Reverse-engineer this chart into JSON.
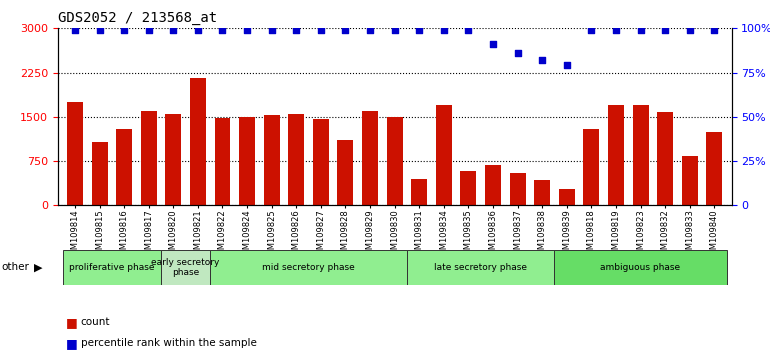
{
  "title": "GDS2052 / 213568_at",
  "samples": [
    "GSM109814",
    "GSM109815",
    "GSM109816",
    "GSM109817",
    "GSM109820",
    "GSM109821",
    "GSM109822",
    "GSM109824",
    "GSM109825",
    "GSM109826",
    "GSM109827",
    "GSM109828",
    "GSM109829",
    "GSM109830",
    "GSM109831",
    "GSM109834",
    "GSM109835",
    "GSM109836",
    "GSM109837",
    "GSM109838",
    "GSM109839",
    "GSM109818",
    "GSM109819",
    "GSM109823",
    "GSM109832",
    "GSM109833",
    "GSM109840"
  ],
  "counts": [
    1750,
    1080,
    1300,
    1600,
    1550,
    2150,
    1480,
    1500,
    1530,
    1550,
    1470,
    1100,
    1600,
    1500,
    450,
    1700,
    580,
    680,
    540,
    430,
    270,
    1300,
    1700,
    1700,
    1580,
    840,
    1250
  ],
  "percentile_ranks": [
    99,
    99,
    99,
    99,
    99,
    99,
    99,
    99,
    99,
    99,
    99,
    99,
    99,
    99,
    99,
    99,
    99,
    91,
    86,
    82,
    79,
    99,
    99,
    99,
    99,
    99,
    99
  ],
  "phase_groups": [
    {
      "label": "proliferative phase",
      "start": 0,
      "end": 4,
      "color": "#90ee90"
    },
    {
      "label": "early secretory\nphase",
      "start": 4,
      "end": 6,
      "color": "#c0e8c0"
    },
    {
      "label": "mid secretory phase",
      "start": 6,
      "end": 14,
      "color": "#90ee90"
    },
    {
      "label": "late secretory phase",
      "start": 14,
      "end": 20,
      "color": "#90ee90"
    },
    {
      "label": "ambiguous phase",
      "start": 20,
      "end": 27,
      "color": "#66dd66"
    }
  ],
  "ylim_left": [
    0,
    3000
  ],
  "ylim_right": [
    0,
    100
  ],
  "yticks_left": [
    0,
    750,
    1500,
    2250,
    3000
  ],
  "yticks_right": [
    0,
    25,
    50,
    75,
    100
  ],
  "bar_color": "#cc1100",
  "dot_color": "#0000cc",
  "bg_color": "#ffffff",
  "other_label": "other"
}
